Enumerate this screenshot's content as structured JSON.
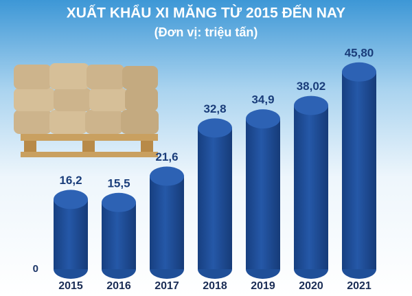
{
  "chart_data": {
    "type": "bar",
    "title": "XUẤT KHẨU XI MĂNG TỪ 2015 ĐẾN NAY",
    "subtitle": "(Đơn vị: triệu tấn)",
    "categories": [
      "2015",
      "2016",
      "2017",
      "2018",
      "2019",
      "2020",
      "2021"
    ],
    "values": [
      16.2,
      15.5,
      21.6,
      32.8,
      34.9,
      38.02,
      45.8
    ],
    "value_labels": [
      "16,2",
      "15,5",
      "21,6",
      "32,8",
      "34,9",
      "38,02",
      "45,80"
    ],
    "color": "#1f4f98",
    "ylim": [
      0,
      48
    ],
    "yticks": [
      0
    ],
    "grid": false
  }
}
